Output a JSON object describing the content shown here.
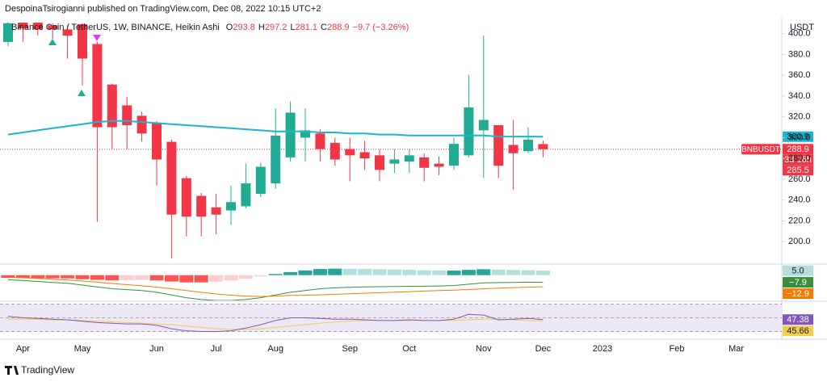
{
  "page": {
    "header": "DespoinaTsirogianni published on TradingView.com, Dec 08, 2022 10:15 UTC+2",
    "footer": "TradingView"
  },
  "chart_data": [
    {
      "type": "candlestick",
      "title": "Binance Coin / TetherUS, 1W, BINANCE, Heikin Ashi",
      "currency": "USDT",
      "symbol": "BNBUSDT",
      "countdown": "3d 16h",
      "last_price": 285.5,
      "legend_prefixes": [
        "O",
        "H",
        "L",
        "C"
      ],
      "change": "−9.7 (−3.26%)",
      "up_color": "#22ab94",
      "down_color": "#f23645",
      "categories": [
        null,
        "Apr",
        null,
        null,
        null,
        "May",
        null,
        null,
        null,
        null,
        "Jun",
        null,
        null,
        null,
        "Jul",
        null,
        null,
        null,
        "Aug",
        null,
        null,
        null,
        null,
        "Sep",
        null,
        null,
        null,
        "Oct",
        null,
        null,
        null,
        null,
        "Nov",
        null,
        null,
        null,
        "Dec",
        null,
        null,
        null,
        "2023",
        null,
        null,
        null,
        null,
        "Feb",
        null,
        null,
        null,
        "Mar",
        null,
        null
      ],
      "open": [
        392,
        412,
        412,
        408,
        404,
        409,
        390,
        351,
        331,
        321,
        314,
        296,
        261,
        244,
        233,
        230,
        234,
        246,
        256,
        281,
        300,
        304,
        295,
        289,
        286,
        283,
        275,
        277,
        281,
        275,
        273,
        283,
        307,
        312,
        293,
        287,
        293.8,
        null,
        null,
        null,
        null,
        null,
        null,
        null,
        null,
        null,
        null,
        null,
        null,
        null,
        null,
        null
      ],
      "high": [
        412,
        415,
        414,
        410,
        408,
        410,
        392,
        352,
        339,
        325,
        316,
        298,
        263,
        247,
        246,
        254,
        275,
        276,
        328,
        335,
        328,
        308,
        300,
        300,
        297,
        289,
        289,
        289,
        285,
        282,
        300,
        360,
        398,
        312,
        317,
        310,
        297.2,
        null,
        null,
        null,
        null,
        null,
        null,
        null,
        null,
        null,
        null,
        null,
        null,
        null,
        null,
        null
      ],
      "low": [
        388,
        392,
        398,
        395,
        376,
        350,
        219,
        289,
        289,
        296,
        254,
        184,
        205,
        205,
        207,
        216,
        232,
        243,
        251,
        277,
        277,
        277,
        273,
        258,
        269,
        258,
        266,
        266,
        258,
        264,
        269,
        281,
        261,
        261,
        250,
        285,
        281.1,
        null,
        null,
        null,
        null,
        null,
        null,
        null,
        null,
        null,
        null,
        null,
        null,
        null,
        null,
        null
      ],
      "close": [
        410,
        405,
        404,
        404,
        398,
        376,
        310,
        310,
        312,
        304,
        279,
        226,
        224,
        224,
        226,
        238,
        256,
        272,
        302,
        324,
        307,
        289,
        279,
        283,
        280,
        269,
        279,
        283,
        271,
        272,
        294,
        329,
        317,
        273,
        285,
        298,
        288.9,
        null,
        null,
        null,
        null,
        null,
        null,
        null,
        null,
        null,
        null,
        null,
        null,
        null,
        null,
        null
      ],
      "overlay": {
        "color": "#1cb5cf",
        "values": [
          303,
          305,
          307,
          309,
          311,
          313,
          315,
          316,
          316,
          315,
          314,
          313,
          312,
          311,
          310,
          309,
          308,
          307,
          306,
          306,
          306,
          305,
          305,
          304,
          304,
          303,
          303,
          302,
          302,
          302,
          302,
          302,
          302,
          301,
          301,
          301,
          300.9,
          null,
          null,
          null,
          null,
          null,
          null,
          null,
          null,
          null,
          null,
          null,
          null,
          null,
          null,
          null
        ]
      },
      "ylim": [
        180,
        409
      ],
      "yticks": [
        {
          "value": 200,
          "label": "200.0"
        },
        {
          "value": 220,
          "label": "220.0"
        },
        {
          "value": 240,
          "label": "240.0"
        },
        {
          "value": 260,
          "label": "260.0"
        },
        {
          "value": 280,
          "label": "280.0"
        },
        {
          "value": 300,
          "label": "300.0"
        },
        {
          "value": 320,
          "label": "320.0"
        },
        {
          "value": 340,
          "label": "340.0"
        },
        {
          "value": 360,
          "label": "360.0"
        },
        {
          "value": 380,
          "label": "380.0"
        },
        {
          "value": 400,
          "label": "400.0"
        }
      ],
      "grid": false
    },
    {
      "type": "macd",
      "ylim": [
        -28,
        10.5
      ],
      "histogram": {
        "colors": [
          "#26a69a",
          "#b2dfdb",
          "#ff5252",
          "#ffcdd2"
        ],
        "values": [
          -3,
          -3.2,
          -3.4,
          -3.5,
          -3.6,
          -4.5,
          -5.2,
          -5.8,
          -5.5,
          -5.2,
          -5.8,
          -7,
          -8,
          -8,
          -7.2,
          -5.8,
          -3.8,
          -1.4,
          1.3,
          3.4,
          5.3,
          6.8,
          7.2,
          7.1,
          7,
          6.6,
          6.3,
          5.9,
          5.4,
          5.1,
          5.1,
          5.9,
          6.6,
          6.2,
          5.8,
          5.5,
          5
        ],
        "value_labels": [
          null,
          null,
          null,
          null,
          null,
          null,
          null,
          null,
          null,
          null,
          null,
          null,
          null,
          null,
          null,
          null,
          null,
          null,
          null,
          null,
          null,
          null,
          null,
          null,
          null,
          null,
          null,
          null,
          null,
          null,
          null,
          null,
          null,
          null,
          null,
          null,
          "5.0"
        ]
      },
      "macd": {
        "color": "#388e3c",
        "values": [
          -5,
          -6,
          -7,
          -8,
          -9,
          -11,
          -13,
          -15,
          -16,
          -17,
          -19,
          -22,
          -25,
          -27,
          -28,
          -28,
          -27,
          -25,
          -22,
          -19,
          -17,
          -15,
          -14,
          -13.5,
          -13,
          -12.8,
          -12.5,
          -12.3,
          -12.2,
          -12,
          -11.5,
          -10,
          -8.5,
          -8.2,
          -8,
          -7.8,
          -7.9
        ],
        "value_labels": [
          null,
          null,
          null,
          null,
          null,
          null,
          null,
          null,
          null,
          null,
          null,
          null,
          null,
          null,
          null,
          null,
          null,
          null,
          null,
          null,
          null,
          null,
          null,
          null,
          null,
          null,
          null,
          null,
          null,
          null,
          null,
          null,
          null,
          null,
          null,
          null,
          "−7.9"
        ]
      },
      "signal": {
        "color": "#f57c00",
        "values": [
          -2,
          -2.8,
          -3.6,
          -4.5,
          -5.4,
          -6.5,
          -7.8,
          -9.2,
          -10.5,
          -11.8,
          -13.2,
          -15,
          -17,
          -19,
          -20.8,
          -22.2,
          -23.2,
          -23.6,
          -23.3,
          -22.4,
          -22.3,
          -21.8,
          -21.2,
          -20.6,
          -20,
          -19.4,
          -18.8,
          -18.2,
          -17.6,
          -17.1,
          -16.6,
          -15.9,
          -15.1,
          -14.4,
          -13.8,
          -13.3,
          -12.9
        ],
        "value_labels": [
          null,
          null,
          null,
          null,
          null,
          null,
          null,
          null,
          null,
          null,
          null,
          null,
          null,
          null,
          null,
          null,
          null,
          null,
          null,
          null,
          null,
          null,
          null,
          null,
          null,
          null,
          null,
          null,
          null,
          null,
          null,
          null,
          null,
          null,
          null,
          null,
          "−12.9"
        ]
      }
    },
    {
      "type": "rsi",
      "ylim": [
        27,
        73
      ],
      "bands": [
        30,
        50,
        70
      ],
      "band_color": "#ede7f6",
      "rsi": {
        "color": "#7e57c2",
        "values": [
          52,
          50,
          49,
          48,
          47,
          45,
          43,
          42,
          41,
          41,
          39,
          34,
          31,
          30,
          30,
          31,
          35,
          40,
          46,
          50,
          50,
          49,
          48,
          48,
          47,
          46,
          46,
          47,
          46,
          46,
          48,
          55,
          54,
          47,
          48,
          49,
          47.38
        ]
      },
      "signal": {
        "color": "#f2cf4b",
        "values": [
          48,
          48,
          48,
          47,
          47,
          46,
          45,
          44,
          43,
          42,
          41,
          40,
          38,
          36,
          34,
          33,
          33,
          34,
          36,
          38,
          40,
          42,
          44,
          45,
          46,
          46,
          46,
          46,
          46,
          46,
          46,
          47,
          48,
          48,
          47,
          46,
          45.66
        ]
      }
    }
  ]
}
